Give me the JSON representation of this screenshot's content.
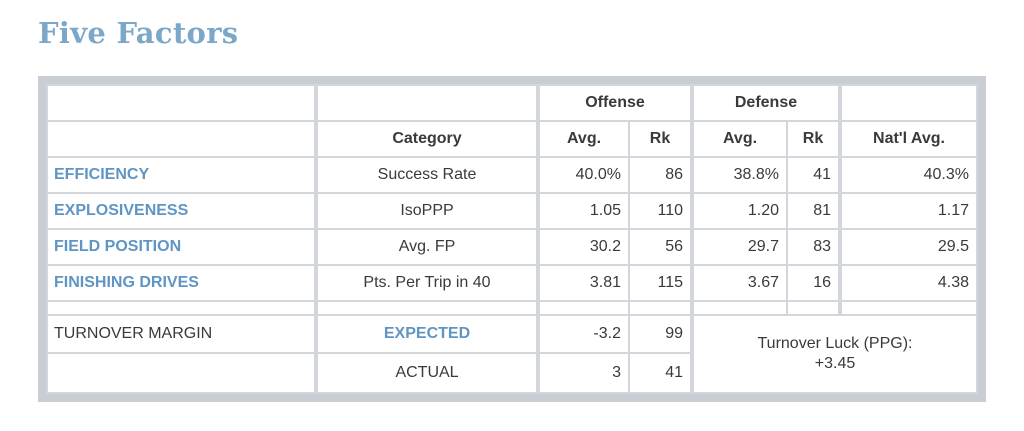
{
  "title": "Five Factors",
  "header": {
    "offense": "Offense",
    "defense": "Defense",
    "category": "Category",
    "avg": "Avg.",
    "rk": "Rk",
    "natl_avg": "Nat'l Avg."
  },
  "rows": [
    {
      "label": "EFFICIENCY",
      "category": "Success Rate",
      "off_avg": "40.0%",
      "off_rk": "86",
      "def_avg": "38.8%",
      "def_rk": "41",
      "natl": "40.3%"
    },
    {
      "label": "EXPLOSIVENESS",
      "category": "IsoPPP",
      "off_avg": "1.05",
      "off_rk": "110",
      "def_avg": "1.20",
      "def_rk": "81",
      "natl": "1.17"
    },
    {
      "label": "FIELD POSITION",
      "category": "Avg. FP",
      "off_avg": "30.2",
      "off_rk": "56",
      "def_avg": "29.7",
      "def_rk": "83",
      "natl": "29.5"
    },
    {
      "label": "FINISHING DRIVES",
      "category": "Pts. Per Trip in 40",
      "off_avg": "3.81",
      "off_rk": "115",
      "def_avg": "3.67",
      "def_rk": "16",
      "natl": "4.38"
    }
  ],
  "turnover": {
    "label": "TURNOVER MARGIN",
    "expected_label": "EXPECTED",
    "expected_value": "-3.2",
    "expected_rk": "99",
    "actual_label": "ACTUAL",
    "actual_value": "3",
    "actual_rk": "41",
    "luck_label": "Turnover Luck (PPG):",
    "luck_value": "+3.45"
  },
  "colors": {
    "title": "#7ba7c8",
    "accent_label": "#5f95c4",
    "frame": "#c9ced4"
  }
}
